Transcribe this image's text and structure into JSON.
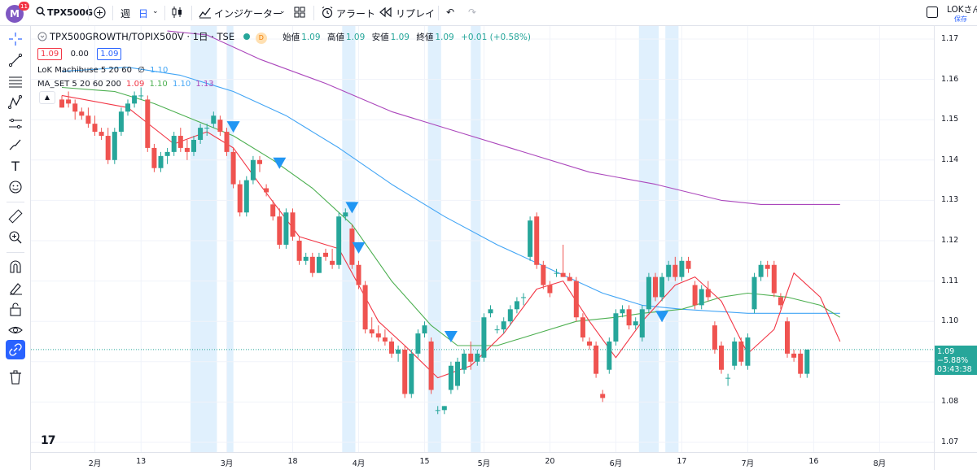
{
  "toolbar": {
    "avatar_letter": "M",
    "avatar_badge": "11",
    "symbol": "TPX500G",
    "interval_week": "週",
    "interval_day": "日",
    "indicators_label": "インジケーター",
    "alert_label": "アラート",
    "replay_label": "リプレイ",
    "user_name": "LOKさん",
    "save_label": "保存"
  },
  "legend": {
    "title": "TPX500GROWTH/TOPIX500V · 1日 · TSE",
    "badge": "D",
    "open_label": "始値",
    "open": "1.09",
    "high_label": "高値",
    "high": "1.09",
    "low_label": "安値",
    "low": "1.09",
    "close_label": "終値",
    "close": "1.09",
    "change": "+0.01 (+0.58%)",
    "bid": "1.09",
    "spread": "0.00",
    "ask": "1.09",
    "ind1_name": "LoK Machibuse 5 20 60",
    "ind1_icon": "∅",
    "ind1_val": "1.10",
    "ind2_name": "MA_SET 5 20 60 200",
    "ind2_v1": "1.09",
    "ind2_v2": "1.10",
    "ind2_v3": "1.10",
    "ind2_v4": "1.13"
  },
  "price_label": {
    "price": "1.09",
    "change": "−5.88%",
    "countdown": "03:43:38"
  },
  "colors": {
    "up": "#26a69a",
    "down": "#ef5350",
    "ma5": "#f23645",
    "ma20": "#4caf50",
    "ma60": "#42a5f5",
    "ma200": "#ab47bc",
    "signal": "#2196f3",
    "highlight": "#bbdefb"
  },
  "chart_data": {
    "type": "candlestick",
    "ylim": [
      1.07,
      1.17
    ],
    "yticks": [
      "1.17",
      "1.16",
      "1.15",
      "1.14",
      "1.13",
      "1.12",
      "1.11",
      "1.10",
      "1.09",
      "1.08",
      "1.07"
    ],
    "xticks": [
      {
        "label": "2月",
        "i": 5
      },
      {
        "label": "13",
        "i": 12
      },
      {
        "label": "3月",
        "i": 25
      },
      {
        "label": "18",
        "i": 35
      },
      {
        "label": "4月",
        "i": 45
      },
      {
        "label": "15",
        "i": 55
      },
      {
        "label": "5月",
        "i": 64
      },
      {
        "label": "20",
        "i": 74
      },
      {
        "label": "6月",
        "i": 84
      },
      {
        "label": "17",
        "i": 94
      },
      {
        "label": "7月",
        "i": 104
      },
      {
        "label": "16",
        "i": 114
      },
      {
        "label": "8月",
        "i": 124
      }
    ],
    "candles": [
      [
        1.155,
        1.156,
        1.153,
        1.153
      ],
      [
        1.155,
        1.157,
        1.153,
        1.154
      ],
      [
        1.154,
        1.155,
        1.15,
        1.152
      ],
      [
        1.152,
        1.153,
        1.15,
        1.151
      ],
      [
        1.151,
        1.153,
        1.148,
        1.149
      ],
      [
        1.149,
        1.151,
        1.146,
        1.147
      ],
      [
        1.147,
        1.148,
        1.145,
        1.146
      ],
      [
        1.146,
        1.148,
        1.139,
        1.14
      ],
      [
        1.14,
        1.148,
        1.139,
        1.147
      ],
      [
        1.147,
        1.153,
        1.146,
        1.152
      ],
      [
        1.152,
        1.155,
        1.151,
        1.154
      ],
      [
        1.154,
        1.157,
        1.153,
        1.156
      ],
      [
        1.156,
        1.158,
        1.155,
        1.156
      ],
      [
        1.155,
        1.156,
        1.142,
        1.143
      ],
      [
        1.143,
        1.144,
        1.137,
        1.138
      ],
      [
        1.138,
        1.142,
        1.137,
        1.141
      ],
      [
        1.141,
        1.143,
        1.139,
        1.142
      ],
      [
        1.142,
        1.147,
        1.141,
        1.146
      ],
      [
        1.146,
        1.148,
        1.142,
        1.143
      ],
      [
        1.143,
        1.145,
        1.14,
        1.142
      ],
      [
        1.142,
        1.146,
        1.141,
        1.145
      ],
      [
        1.145,
        1.149,
        1.144,
        1.148
      ],
      [
        1.148,
        1.149,
        1.146,
        1.148
      ],
      [
        1.149,
        1.152,
        1.148,
        1.151
      ],
      [
        1.15,
        1.151,
        1.146,
        1.147
      ],
      [
        1.147,
        1.148,
        1.141,
        1.142
      ],
      [
        1.142,
        1.143,
        1.133,
        1.134
      ],
      [
        1.134,
        1.135,
        1.126,
        1.127
      ],
      [
        1.127,
        1.136,
        1.126,
        1.135
      ],
      [
        1.135,
        1.141,
        1.134,
        1.14
      ],
      [
        1.14,
        1.141,
        1.137,
        1.139
      ],
      [
        1.133,
        1.134,
        1.131,
        1.132
      ],
      [
        1.129,
        1.13,
        1.125,
        1.126
      ],
      [
        1.126,
        1.128,
        1.118,
        1.119
      ],
      [
        1.119,
        1.128,
        1.118,
        1.127
      ],
      [
        1.127,
        1.128,
        1.12,
        1.121
      ],
      [
        1.12,
        1.121,
        1.114,
        1.115
      ],
      [
        1.115,
        1.117,
        1.114,
        1.116
      ],
      [
        1.116,
        1.117,
        1.111,
        1.112
      ],
      [
        1.112,
        1.117,
        1.112,
        1.116
      ],
      [
        1.117,
        1.118,
        1.115,
        1.116
      ],
      [
        1.115,
        1.118,
        1.113,
        1.114
      ],
      [
        1.114,
        1.127,
        1.113,
        1.126
      ],
      [
        1.126,
        1.128,
        1.125,
        1.127
      ],
      [
        1.123,
        1.124,
        1.113,
        1.114
      ],
      [
        1.114,
        1.115,
        1.108,
        1.109
      ],
      [
        1.109,
        1.11,
        1.097,
        1.098
      ],
      [
        1.098,
        1.101,
        1.096,
        1.097
      ],
      [
        1.097,
        1.099,
        1.095,
        1.096
      ],
      [
        1.096,
        1.098,
        1.094,
        1.095
      ],
      [
        1.095,
        1.096,
        1.091,
        1.092
      ],
      [
        1.092,
        1.094,
        1.09,
        1.093
      ],
      [
        1.093,
        1.094,
        1.081,
        1.082
      ],
      [
        1.082,
        1.093,
        1.081,
        1.092
      ],
      [
        1.092,
        1.098,
        1.091,
        1.097
      ],
      [
        1.097,
        1.1,
        1.096,
        1.099
      ],
      [
        1.095,
        1.096,
        1.082,
        1.083
      ],
      [
        1.078,
        1.079,
        1.077,
        1.078
      ],
      [
        1.078,
        1.079,
        1.077,
        1.079
      ],
      [
        1.083,
        1.09,
        1.082,
        1.089
      ],
      [
        1.084,
        1.091,
        1.083,
        1.09
      ],
      [
        1.088,
        1.093,
        1.087,
        1.092
      ],
      [
        1.092,
        1.095,
        1.088,
        1.09
      ],
      [
        1.09,
        1.093,
        1.089,
        1.092
      ],
      [
        1.091,
        1.102,
        1.09,
        1.101
      ],
      [
        1.102,
        1.104,
        1.101,
        1.103
      ],
      [
        1.098,
        1.099,
        1.097,
        1.098
      ],
      [
        1.098,
        1.101,
        1.097,
        1.1
      ],
      [
        1.1,
        1.104,
        1.099,
        1.103
      ],
      [
        1.103,
        1.106,
        1.102,
        1.105
      ],
      [
        1.106,
        1.107,
        1.104,
        1.106
      ],
      [
        1.116,
        1.126,
        1.115,
        1.125
      ],
      [
        1.126,
        1.127,
        1.113,
        1.114
      ],
      [
        1.114,
        1.115,
        1.108,
        1.109
      ],
      [
        1.109,
        1.11,
        1.106,
        1.107
      ],
      [
        1.112,
        1.113,
        1.111,
        1.112
      ],
      [
        1.112,
        1.119,
        1.111,
        1.111
      ],
      [
        1.111,
        1.112,
        1.11,
        1.11
      ],
      [
        1.11,
        1.111,
        1.1,
        1.101
      ],
      [
        1.101,
        1.102,
        1.095,
        1.096
      ],
      [
        1.095,
        1.096,
        1.093,
        1.094
      ],
      [
        1.094,
        1.095,
        1.086,
        1.087
      ],
      [
        1.082,
        1.083,
        1.08,
        1.081
      ],
      [
        1.088,
        1.096,
        1.087,
        1.095
      ],
      [
        1.095,
        1.103,
        1.094,
        1.102
      ],
      [
        1.102,
        1.104,
        1.101,
        1.103
      ],
      [
        1.103,
        1.104,
        1.098,
        1.099
      ],
      [
        1.099,
        1.101,
        1.098,
        1.1
      ],
      [
        1.096,
        1.104,
        1.095,
        1.103
      ],
      [
        1.103,
        1.112,
        1.102,
        1.111
      ],
      [
        1.111,
        1.112,
        1.105,
        1.106
      ],
      [
        1.106,
        1.112,
        1.105,
        1.111
      ],
      [
        1.111,
        1.115,
        1.11,
        1.114
      ],
      [
        1.114,
        1.116,
        1.11,
        1.111
      ],
      [
        1.111,
        1.116,
        1.11,
        1.115
      ],
      [
        1.115,
        1.116,
        1.112,
        1.113
      ],
      [
        1.109,
        1.11,
        1.103,
        1.104
      ],
      [
        1.104,
        1.109,
        1.103,
        1.108
      ],
      [
        1.108,
        1.11,
        1.105,
        1.106
      ],
      [
        1.099,
        1.1,
        1.092,
        1.093
      ],
      [
        1.094,
        1.095,
        1.087,
        1.088
      ],
      [
        1.086,
        1.087,
        1.084,
        1.086
      ],
      [
        1.089,
        1.096,
        1.088,
        1.095
      ],
      [
        1.095,
        1.096,
        1.089,
        1.09
      ],
      [
        1.089,
        1.097,
        1.088,
        1.096
      ],
      [
        1.103,
        1.112,
        1.102,
        1.111
      ],
      [
        1.111,
        1.115,
        1.11,
        1.114
      ],
      [
        1.114,
        1.115,
        1.111,
        1.113
      ],
      [
        1.114,
        1.115,
        1.106,
        1.107
      ],
      [
        1.106,
        1.107,
        1.103,
        1.104
      ],
      [
        1.1,
        1.101,
        1.091,
        1.092
      ],
      [
        1.092,
        1.093,
        1.09,
        1.091
      ],
      [
        1.092,
        1.093,
        1.086,
        1.087
      ],
      [
        1.087,
        1.093,
        1.086,
        1.093
      ]
    ],
    "ma5": [
      [
        0,
        1.156
      ],
      [
        10,
        1.153
      ],
      [
        17,
        1.144
      ],
      [
        22,
        1.147
      ],
      [
        26,
        1.143
      ],
      [
        30,
        1.134
      ],
      [
        36,
        1.121
      ],
      [
        42,
        1.118
      ],
      [
        48,
        1.1
      ],
      [
        52,
        1.094
      ],
      [
        57,
        1.086
      ],
      [
        62,
        1.089
      ],
      [
        67,
        1.097
      ],
      [
        72,
        1.108
      ],
      [
        76,
        1.11
      ],
      [
        80,
        1.1
      ],
      [
        84,
        1.091
      ],
      [
        88,
        1.1
      ],
      [
        93,
        1.109
      ],
      [
        96,
        1.111
      ],
      [
        100,
        1.105
      ],
      [
        104,
        1.092
      ],
      [
        108,
        1.098
      ],
      [
        111,
        1.112
      ],
      [
        115,
        1.106
      ],
      [
        118,
        1.095
      ]
    ],
    "ma20": [
      [
        0,
        1.158
      ],
      [
        8,
        1.157
      ],
      [
        14,
        1.154
      ],
      [
        20,
        1.15
      ],
      [
        26,
        1.146
      ],
      [
        32,
        1.14
      ],
      [
        38,
        1.133
      ],
      [
        44,
        1.124
      ],
      [
        50,
        1.11
      ],
      [
        56,
        1.099
      ],
      [
        60,
        1.094
      ],
      [
        66,
        1.094
      ],
      [
        72,
        1.097
      ],
      [
        78,
        1.1
      ],
      [
        84,
        1.101
      ],
      [
        88,
        1.102
      ],
      [
        94,
        1.103
      ],
      [
        100,
        1.106
      ],
      [
        104,
        1.107
      ],
      [
        110,
        1.106
      ],
      [
        115,
        1.104
      ],
      [
        118,
        1.101
      ]
    ],
    "ma60": [
      [
        0,
        1.162
      ],
      [
        10,
        1.163
      ],
      [
        18,
        1.161
      ],
      [
        26,
        1.157
      ],
      [
        34,
        1.151
      ],
      [
        42,
        1.143
      ],
      [
        50,
        1.134
      ],
      [
        58,
        1.126
      ],
      [
        66,
        1.119
      ],
      [
        74,
        1.113
      ],
      [
        82,
        1.107
      ],
      [
        88,
        1.104
      ],
      [
        94,
        1.103
      ],
      [
        104,
        1.102
      ],
      [
        112,
        1.102
      ],
      [
        118,
        1.102
      ]
    ],
    "ma200": [
      [
        16,
        1.172
      ],
      [
        22,
        1.171
      ],
      [
        30,
        1.165
      ],
      [
        40,
        1.159
      ],
      [
        50,
        1.152
      ],
      [
        60,
        1.147
      ],
      [
        70,
        1.142
      ],
      [
        80,
        1.137
      ],
      [
        90,
        1.134
      ],
      [
        100,
        1.13
      ],
      [
        106,
        1.129
      ],
      [
        112,
        1.129
      ],
      [
        118,
        1.129
      ]
    ],
    "signals": [
      [
        26,
        1.148
      ],
      [
        33,
        1.139
      ],
      [
        44,
        1.128
      ],
      [
        45,
        1.118
      ],
      [
        59,
        1.096
      ],
      [
        91,
        1.101
      ]
    ],
    "highlights": [
      [
        20,
        24
      ],
      [
        25.5,
        26.5
      ],
      [
        43,
        45
      ],
      [
        56,
        58
      ],
      [
        62.5,
        64
      ],
      [
        88,
        91
      ],
      [
        92,
        94
      ]
    ]
  }
}
